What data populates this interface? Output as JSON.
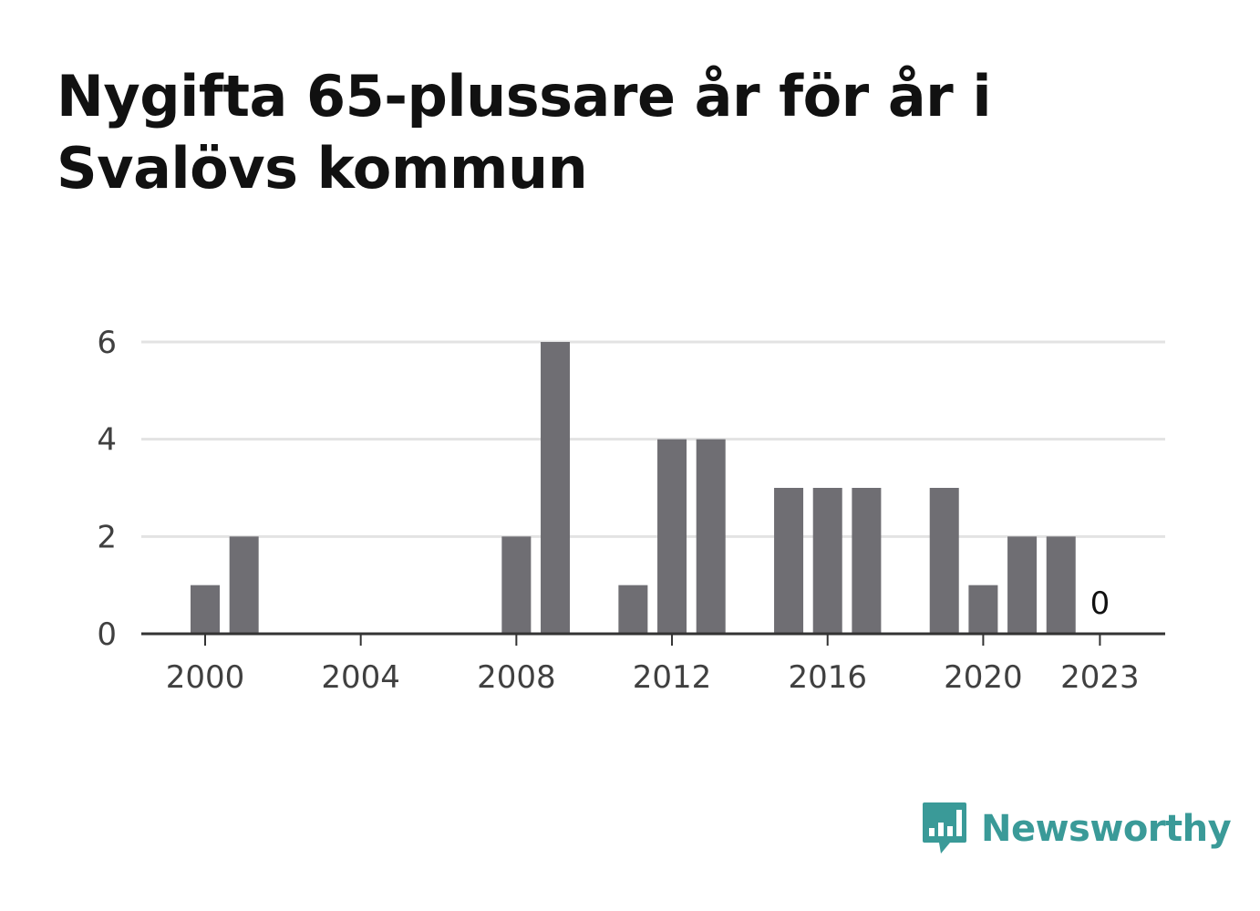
{
  "title": "Nygifta 65-plussare år för år i Svalövs kommun",
  "chart_data": {
    "type": "bar",
    "title": "Nygifta 65-plussare år för år i Svalövs kommun",
    "xlabel": "",
    "ylabel": "",
    "categories": [
      2000,
      2001,
      2002,
      2003,
      2004,
      2005,
      2006,
      2007,
      2008,
      2009,
      2010,
      2011,
      2012,
      2013,
      2014,
      2015,
      2016,
      2017,
      2018,
      2019,
      2020,
      2021,
      2022,
      2023
    ],
    "values": [
      1,
      2,
      0,
      0,
      0,
      0,
      0,
      0,
      2,
      6,
      0,
      1,
      4,
      4,
      0,
      3,
      3,
      3,
      0,
      3,
      1,
      2,
      2,
      0
    ],
    "x_tick_labels": [
      "2000",
      "2004",
      "2008",
      "2012",
      "2016",
      "2020",
      "2023"
    ],
    "y_ticks": [
      0,
      2,
      4,
      6
    ],
    "ylim": [
      0,
      6
    ],
    "data_labels": [
      {
        "category": 2023,
        "text": "0"
      }
    ],
    "grid": true,
    "bar_color": "#6f6e73",
    "grid_color": "#e3e3e3",
    "axis_color": "#333333"
  },
  "logo": {
    "text": "Newsworthy",
    "icon": "newsworthy-bar-chart-icon",
    "color": "#3a9a98"
  }
}
